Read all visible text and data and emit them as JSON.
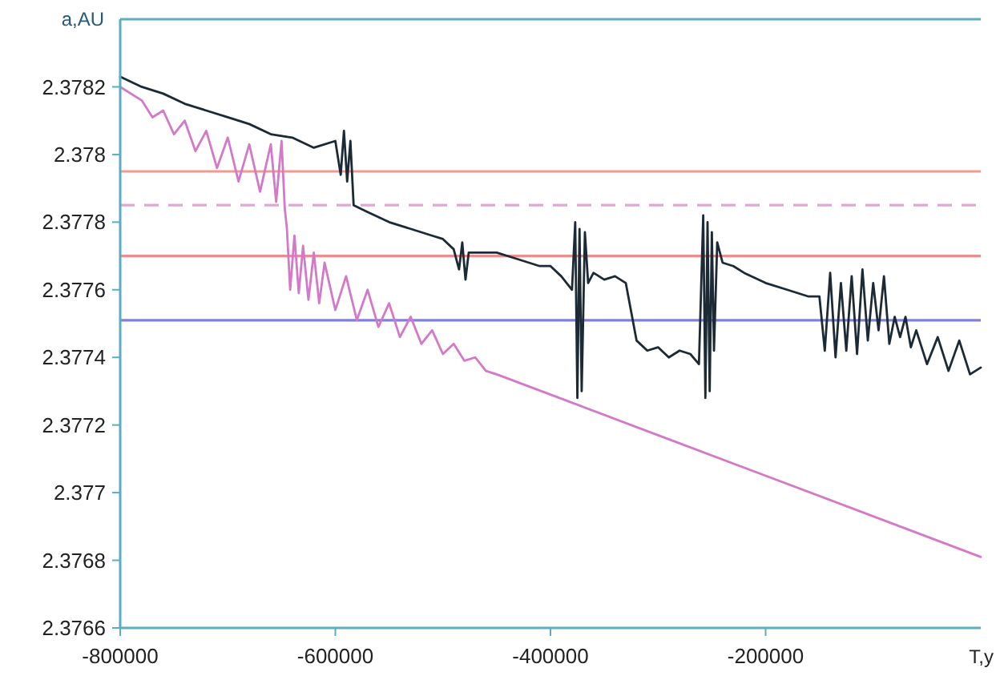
{
  "chart_data": {
    "type": "line",
    "xlabel": "T,y",
    "ylabel": "a,AU",
    "xlim": [
      -800000,
      0
    ],
    "xticks": [
      -800000,
      -600000,
      -400000,
      -200000
    ],
    "ylim": [
      2.3766,
      2.3784
    ],
    "yticks": [
      2.3766,
      2.3768,
      2.377,
      2.3772,
      2.3774,
      2.3776,
      2.3778,
      2.378,
      2.3782
    ],
    "grid": false,
    "marker": "none",
    "line_style": "solid",
    "ref_lines": [
      {
        "axis": "y",
        "value": 2.37795,
        "color": "#f29a90",
        "line_style": "solid"
      },
      {
        "axis": "y",
        "value": 2.37785,
        "color": "#e2a6d6",
        "line_style": "dashed"
      },
      {
        "axis": "y",
        "value": 2.3777,
        "color": "#ef8c8c",
        "line_style": "solid"
      },
      {
        "axis": "y",
        "value": 2.37751,
        "color": "#8080d8",
        "line_style": "solid"
      }
    ],
    "series": [
      {
        "color": "#d478c8",
        "x": [
          -800000,
          -780000,
          -770000,
          -760000,
          -750000,
          -740000,
          -730000,
          -720000,
          -710000,
          -700000,
          -690000,
          -680000,
          -670000,
          -660000,
          -655000,
          -650000,
          -647000,
          -645000,
          -642000,
          -638000,
          -634000,
          -630000,
          -625000,
          -620000,
          -615000,
          -610000,
          -600000,
          -590000,
          -580000,
          -570000,
          -560000,
          -550000,
          -540000,
          -530000,
          -520000,
          -510000,
          -500000,
          -490000,
          -480000,
          -470000,
          -460000,
          -450000,
          -400000,
          -300000,
          -200000,
          -100000,
          0
        ],
        "values": [
          2.3782,
          2.37816,
          2.37811,
          2.37813,
          2.37806,
          2.3781,
          2.37801,
          2.37807,
          2.37796,
          2.37805,
          2.37792,
          2.37803,
          2.37789,
          2.37803,
          2.37786,
          2.37804,
          2.37784,
          2.37778,
          2.3776,
          2.37776,
          2.37759,
          2.37773,
          2.37757,
          2.37771,
          2.37756,
          2.37768,
          2.37754,
          2.37764,
          2.37751,
          2.3776,
          2.37749,
          2.37756,
          2.37746,
          2.37752,
          2.37744,
          2.37748,
          2.37741,
          2.37744,
          2.37739,
          2.3774,
          2.37736,
          2.37735,
          2.37729,
          2.37717,
          2.37705,
          2.37693,
          2.37681
        ]
      },
      {
        "color": "#1c2a36",
        "x": [
          -800000,
          -780000,
          -760000,
          -740000,
          -720000,
          -700000,
          -680000,
          -660000,
          -640000,
          -620000,
          -600000,
          -595000,
          -592000,
          -589000,
          -586000,
          -583000,
          -570000,
          -550000,
          -530000,
          -510000,
          -500000,
          -490000,
          -485000,
          -482000,
          -479000,
          -476000,
          -470000,
          -450000,
          -430000,
          -410000,
          -400000,
          -390000,
          -380000,
          -377000,
          -375000,
          -373000,
          -371000,
          -368000,
          -365000,
          -360000,
          -350000,
          -340000,
          -330000,
          -320000,
          -310000,
          -300000,
          -290000,
          -280000,
          -270000,
          -262000,
          -258000,
          -256000,
          -254000,
          -252000,
          -250000,
          -248000,
          -245000,
          -240000,
          -230000,
          -220000,
          -200000,
          -180000,
          -160000,
          -150000,
          -145000,
          -140000,
          -135000,
          -130000,
          -125000,
          -120000,
          -115000,
          -110000,
          -105000,
          -100000,
          -95000,
          -90000,
          -85000,
          -80000,
          -75000,
          -70000,
          -65000,
          -60000,
          -50000,
          -40000,
          -30000,
          -20000,
          -10000,
          0
        ],
        "values": [
          2.37823,
          2.3782,
          2.37818,
          2.37815,
          2.37813,
          2.37811,
          2.37809,
          2.37806,
          2.37805,
          2.37802,
          2.37804,
          2.37794,
          2.37807,
          2.37792,
          2.37804,
          2.37785,
          2.37783,
          2.3778,
          2.37778,
          2.37776,
          2.37775,
          2.37772,
          2.37766,
          2.37774,
          2.37763,
          2.37771,
          2.37771,
          2.37771,
          2.37769,
          2.37767,
          2.37767,
          2.37764,
          2.3776,
          2.3778,
          2.37728,
          2.37778,
          2.3773,
          2.37777,
          2.37762,
          2.37765,
          2.37763,
          2.37764,
          2.37762,
          2.37745,
          2.37742,
          2.37743,
          2.3774,
          2.37742,
          2.37741,
          2.37738,
          2.37782,
          2.37728,
          2.3778,
          2.3773,
          2.37777,
          2.37742,
          2.37774,
          2.37768,
          2.37767,
          2.37765,
          2.37762,
          2.3776,
          2.37758,
          2.37758,
          2.37742,
          2.37765,
          2.3774,
          2.37762,
          2.37742,
          2.37764,
          2.37741,
          2.37766,
          2.37745,
          2.37762,
          2.37748,
          2.37764,
          2.37744,
          2.37752,
          2.37746,
          2.37752,
          2.37743,
          2.37748,
          2.37738,
          2.37746,
          2.37736,
          2.37745,
          2.37735,
          2.37737
        ]
      }
    ]
  }
}
